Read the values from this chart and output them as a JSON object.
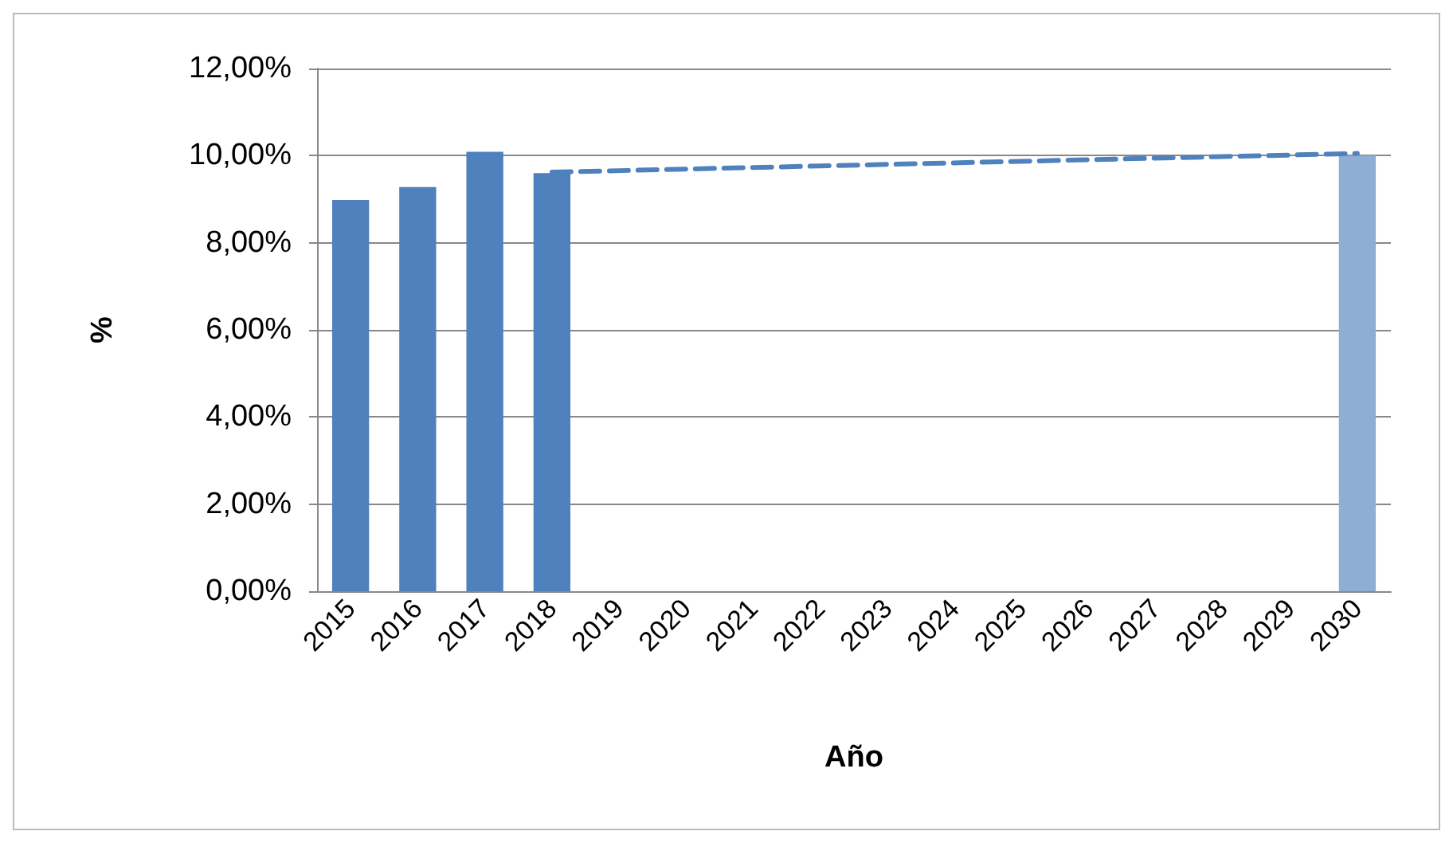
{
  "chart_data": {
    "type": "bar",
    "xlabel": "Año",
    "ylabel": "%",
    "categories": [
      "2015",
      "2016",
      "2017",
      "2018",
      "2019",
      "2020",
      "2021",
      "2022",
      "2023",
      "2024",
      "2025",
      "2026",
      "2027",
      "2028",
      "2029",
      "2030"
    ],
    "series": [
      {
        "color": "#4f81bd",
        "values": [
          8.98,
          9.28,
          10.09,
          9.6,
          null,
          null,
          null,
          null,
          null,
          null,
          null,
          null,
          null,
          null,
          null,
          null
        ]
      },
      {
        "color": "#8eaed6",
        "values": [
          null,
          null,
          null,
          null,
          null,
          null,
          null,
          null,
          null,
          null,
          null,
          null,
          null,
          null,
          null,
          10.0
        ]
      },
      {
        "type": "line",
        "color": "#4f81bd",
        "line_style": "dashed",
        "marker": "none",
        "values": [
          null,
          null,
          null,
          9.62,
          null,
          null,
          null,
          null,
          null,
          null,
          null,
          null,
          null,
          null,
          null,
          10.05
        ]
      }
    ],
    "ylim": [
      0,
      12
    ],
    "yticks": [
      {
        "value": 0,
        "label": "0,00%"
      },
      {
        "value": 2,
        "label": "2,00%"
      },
      {
        "value": 4,
        "label": "4,00%"
      },
      {
        "value": 6,
        "label": "6,00%"
      },
      {
        "value": 8,
        "label": "8,00%"
      },
      {
        "value": 10,
        "label": "10,00%"
      },
      {
        "value": 12,
        "label": "12,00%"
      }
    ],
    "grid": "y"
  }
}
